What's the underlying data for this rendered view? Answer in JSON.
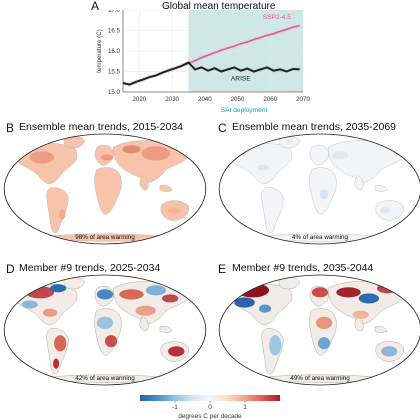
{
  "panels": {
    "a": {
      "letter": "A",
      "title": "Global mean temperature"
    },
    "b": {
      "letter": "B",
      "title": "Ensemble mean trends, 2015-2034",
      "pct": "98% of area warming"
    },
    "c": {
      "letter": "C",
      "title": "Ensemble mean trends, 2035-2069",
      "pct": "4% of area warming"
    },
    "d": {
      "letter": "D",
      "title": "Member #9 trends, 2025-2034",
      "pct": "42% of area warming"
    },
    "e": {
      "letter": "E",
      "title": "Member #9 trends, 2035-2044",
      "pct": "49% of area warming"
    }
  },
  "colorbar": {
    "label": "degrees C per decade",
    "ticks": [
      "-1",
      "0",
      "1"
    ],
    "colors": [
      "#2166ac",
      "#4393c3",
      "#92c5de",
      "#d1e5f0",
      "#f7f7f7",
      "#fddbc7",
      "#f4a582",
      "#d6604d",
      "#b2182b"
    ]
  },
  "chart_data": {
    "type": "line",
    "title": "Global mean temperature",
    "xlabel": "",
    "ylabel": "temperature (C)",
    "xlim": [
      2015,
      2070
    ],
    "ylim": [
      15.0,
      17.0
    ],
    "xticks": [
      2020,
      2030,
      2040,
      2050,
      2060,
      2070
    ],
    "yticks": [
      15.0,
      15.5,
      16.0,
      16.5,
      17.0
    ],
    "shaded_region": {
      "label": "SAI deployment",
      "x": [
        2035,
        2070
      ],
      "color": "#cde8e6"
    },
    "series": [
      {
        "name": "SSP2-4.5",
        "color": "#e8559a",
        "x": [
          2015,
          2017,
          2019,
          2021,
          2023,
          2025,
          2027,
          2029,
          2031,
          2033,
          2035,
          2037,
          2039,
          2041,
          2043,
          2045,
          2047,
          2049,
          2051,
          2053,
          2055,
          2057,
          2059,
          2061,
          2063,
          2065,
          2067,
          2069
        ],
        "y": [
          15.22,
          15.18,
          15.25,
          15.3,
          15.36,
          15.4,
          15.47,
          15.53,
          15.58,
          15.64,
          15.7,
          15.76,
          15.84,
          15.9,
          15.96,
          16.02,
          16.07,
          16.12,
          16.18,
          16.22,
          16.28,
          16.33,
          16.38,
          16.42,
          16.48,
          16.53,
          16.58,
          16.62
        ]
      },
      {
        "name": "ARISE",
        "color": "#222222",
        "x": [
          2015,
          2017,
          2019,
          2021,
          2023,
          2025,
          2027,
          2029,
          2031,
          2033,
          2035,
          2037,
          2039,
          2041,
          2043,
          2045,
          2047,
          2049,
          2051,
          2053,
          2055,
          2057,
          2059,
          2061,
          2063,
          2065,
          2067,
          2069
        ],
        "y": [
          15.22,
          15.18,
          15.25,
          15.3,
          15.36,
          15.4,
          15.47,
          15.53,
          15.58,
          15.64,
          15.72,
          15.55,
          15.6,
          15.52,
          15.58,
          15.5,
          15.55,
          15.6,
          15.52,
          15.57,
          15.5,
          15.55,
          15.6,
          15.52,
          15.55,
          15.5,
          15.56,
          15.55
        ]
      }
    ]
  }
}
